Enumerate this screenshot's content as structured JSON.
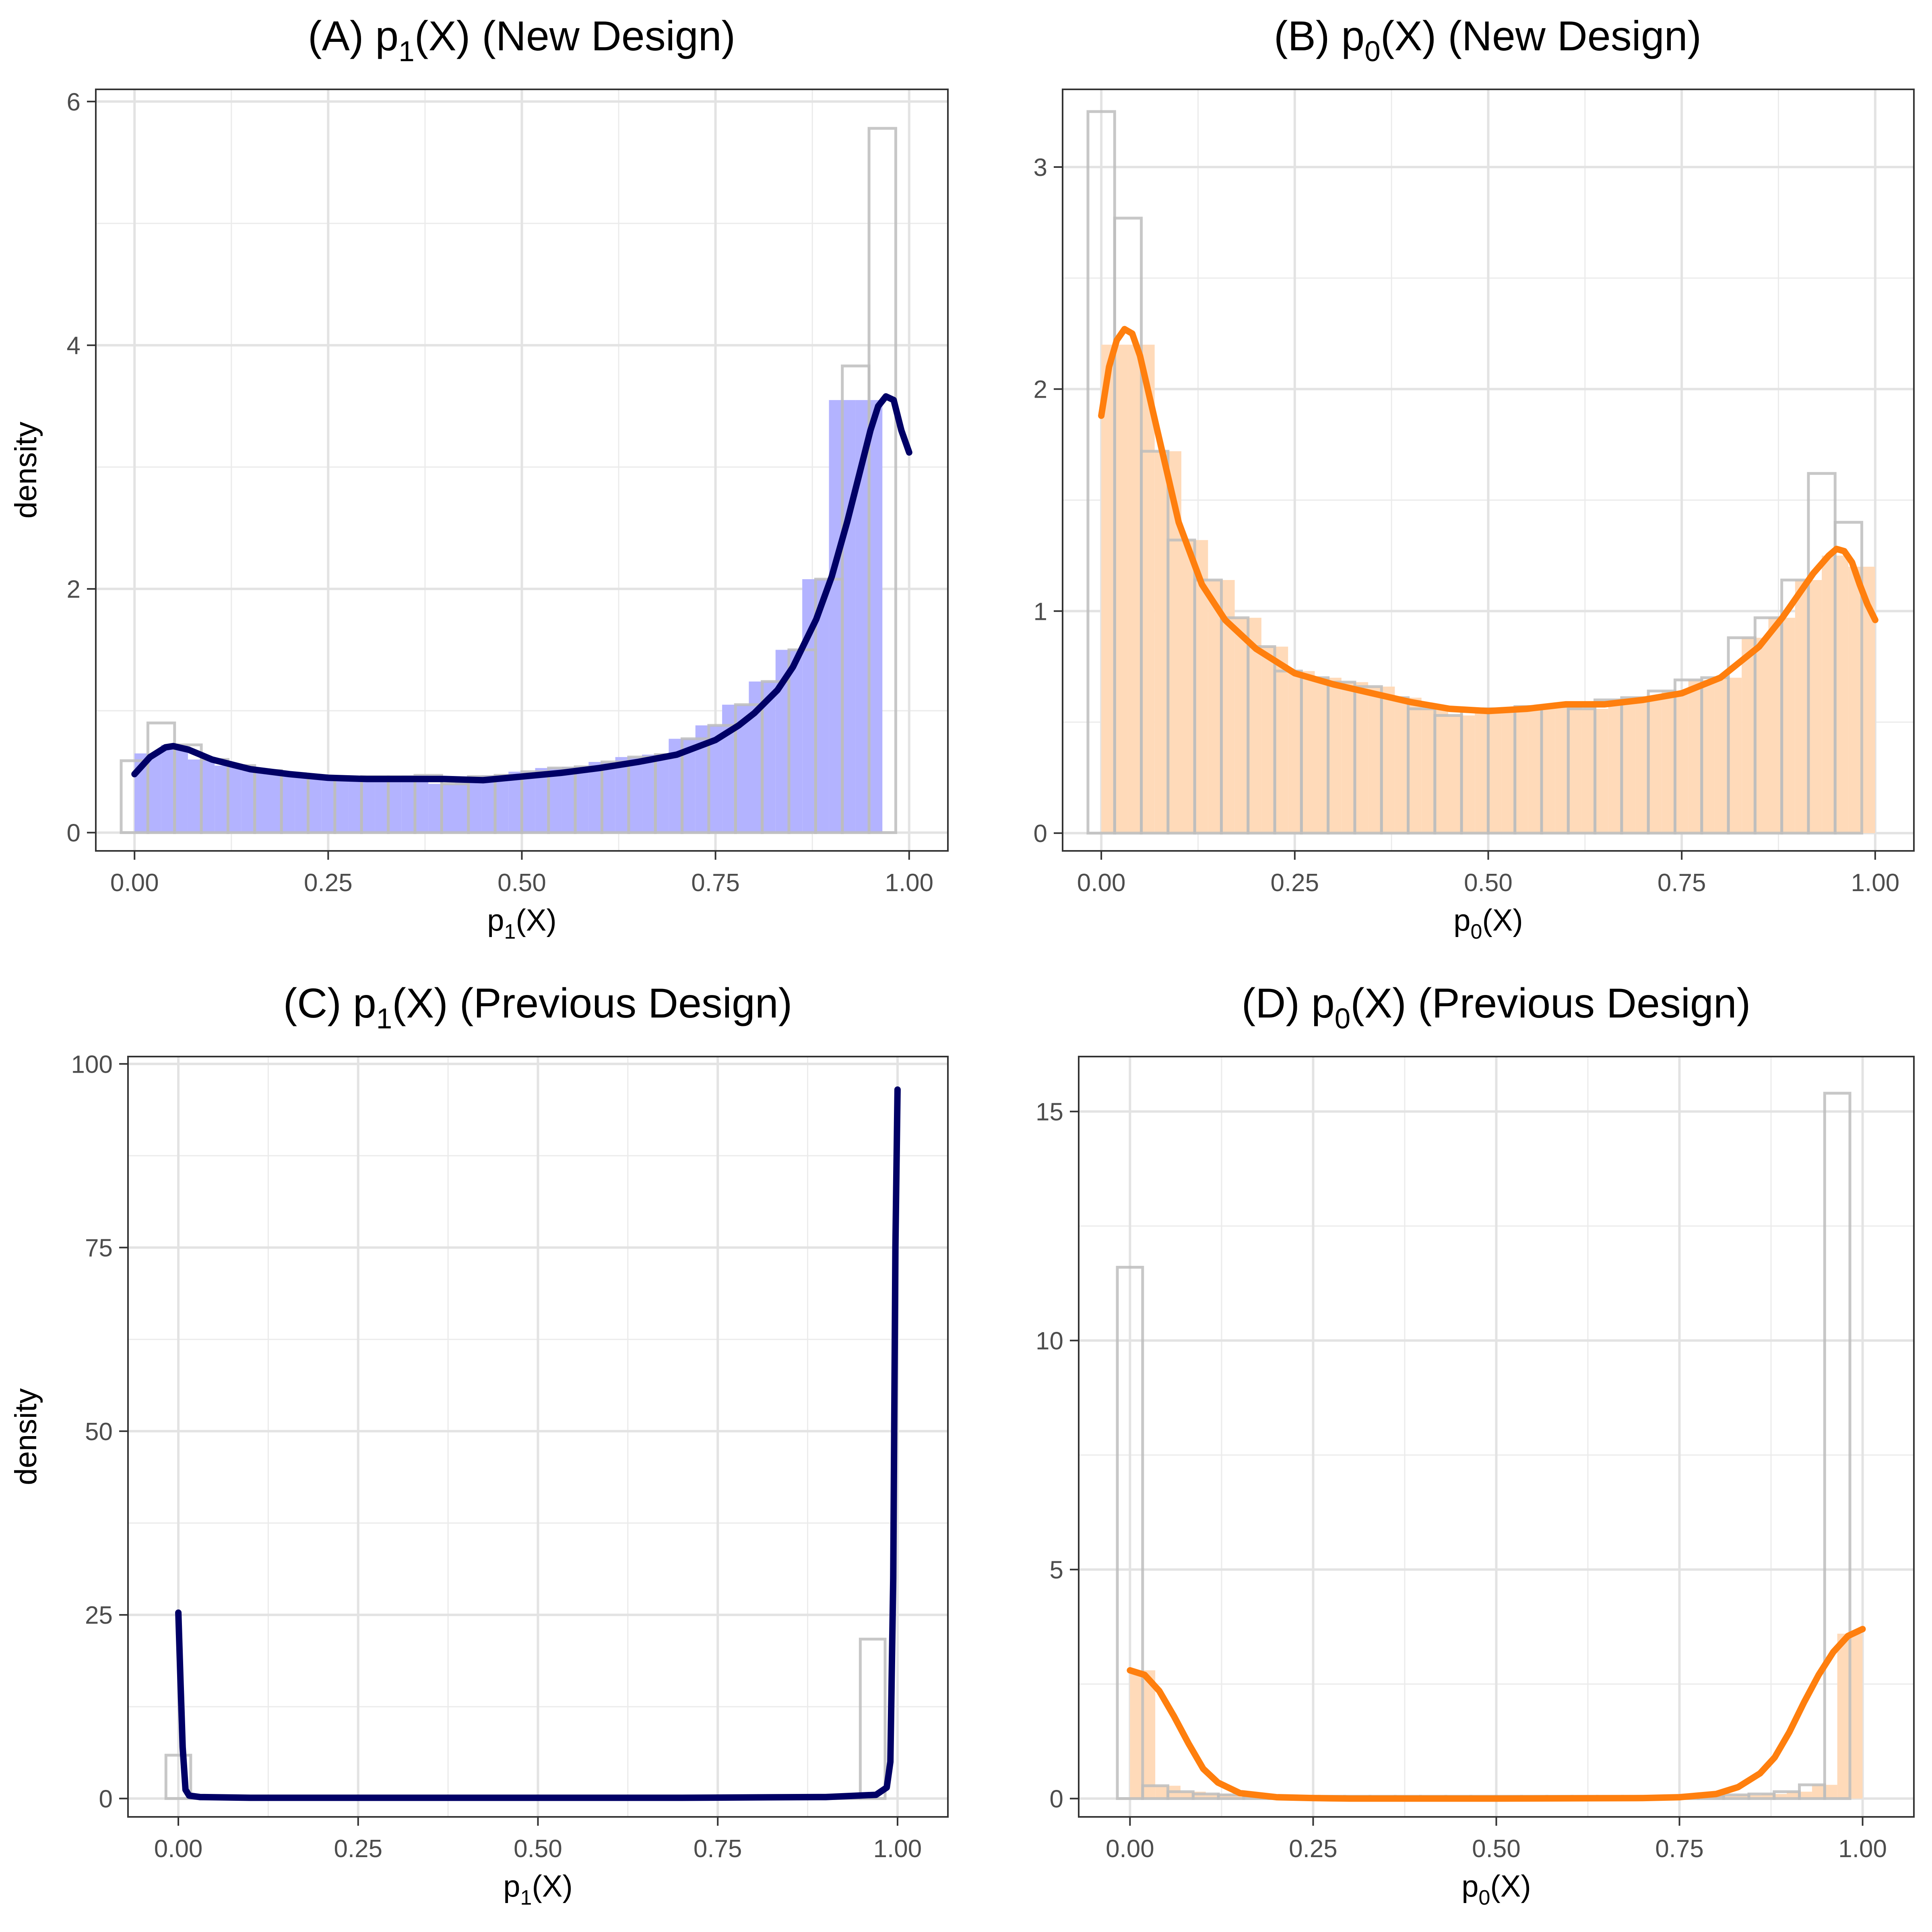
{
  "chart_data": [
    {
      "type": "histogram_density",
      "title": {
        "prefix": "(A) p",
        "sub": "1",
        "suffix": "(X) (New Design)"
      },
      "xlabel": {
        "prefix": "p",
        "sub": "1",
        "suffix": "(X)"
      },
      "ylabel": "density",
      "xlim": [
        -0.05,
        1.05
      ],
      "ylim": [
        -0.15,
        6.1
      ],
      "xticks": [
        0,
        0.25,
        0.5,
        0.75,
        1
      ],
      "xtick_labels": [
        "0.00",
        "0.25",
        "0.50",
        "0.75",
        "1.00"
      ],
      "yticks": [
        0,
        2,
        4,
        6
      ],
      "ytick_labels": [
        "0",
        "2",
        "4",
        "6"
      ],
      "fill_color": "#B3B3FF",
      "line_color": "#000066",
      "outline_color": "#BDBDBD",
      "hist_bins": {
        "start": -0.01724,
        "width": 0.03448,
        "heights": [
          0.59,
          0.9,
          0.72,
          0.6,
          0.55,
          0.51,
          0.48,
          0.46,
          0.45,
          0.46,
          0.46,
          0.47,
          0.4,
          0.46,
          0.47,
          0.5,
          0.53,
          0.54,
          0.58,
          0.62,
          0.64,
          0.77,
          0.88,
          1.05,
          1.24,
          1.5,
          2.08,
          3.83,
          5.78
        ]
      },
      "fill_bins": {
        "start": 0.0,
        "width": 0.03448,
        "heights": [
          0.65,
          0.72,
          0.6,
          0.55,
          0.51,
          0.48,
          0.46,
          0.45,
          0.46,
          0.46,
          0.47,
          0.4,
          0.46,
          0.47,
          0.5,
          0.53,
          0.54,
          0.58,
          0.62,
          0.64,
          0.77,
          0.88,
          1.05,
          1.24,
          1.5,
          2.08,
          3.55,
          3.55
        ]
      },
      "density_curve": {
        "x": [
          0,
          0.02,
          0.04,
          0.05,
          0.07,
          0.1,
          0.15,
          0.2,
          0.25,
          0.3,
          0.35,
          0.4,
          0.45,
          0.5,
          0.55,
          0.6,
          0.65,
          0.7,
          0.75,
          0.78,
          0.8,
          0.83,
          0.85,
          0.88,
          0.9,
          0.92,
          0.94,
          0.95,
          0.96,
          0.97,
          0.98,
          0.99,
          1.0
        ],
        "y": [
          0.48,
          0.62,
          0.7,
          0.71,
          0.68,
          0.6,
          0.52,
          0.48,
          0.45,
          0.44,
          0.44,
          0.44,
          0.43,
          0.46,
          0.49,
          0.53,
          0.58,
          0.64,
          0.76,
          0.88,
          0.98,
          1.17,
          1.36,
          1.75,
          2.1,
          2.55,
          3.05,
          3.3,
          3.5,
          3.58,
          3.55,
          3.3,
          3.12
        ]
      }
    },
    {
      "type": "histogram_density",
      "title": {
        "prefix": "(B) p",
        "sub": "0",
        "suffix": "(X) (New Design)"
      },
      "xlabel": {
        "prefix": "p",
        "sub": "0",
        "suffix": "(X)"
      },
      "ylabel": "density",
      "xlim": [
        -0.05,
        1.05
      ],
      "ylim": [
        -0.08,
        3.35
      ],
      "xticks": [
        0,
        0.25,
        0.5,
        0.75,
        1
      ],
      "xtick_labels": [
        "0.00",
        "0.25",
        "0.50",
        "0.75",
        "1.00"
      ],
      "yticks": [
        0,
        1,
        2,
        3
      ],
      "ytick_labels": [
        "0",
        "1",
        "2",
        "3"
      ],
      "fill_color": "#FFDAB9",
      "line_color": "#FF7F0E",
      "outline_color": "#BDBDBD",
      "hist_bins": {
        "start": -0.01724,
        "width": 0.03448,
        "heights": [
          3.25,
          2.77,
          1.72,
          1.32,
          1.14,
          0.97,
          0.84,
          0.73,
          0.7,
          0.68,
          0.66,
          0.61,
          0.56,
          0.53,
          0.56,
          0.56,
          0.57,
          0.57,
          0.56,
          0.6,
          0.61,
          0.64,
          0.69,
          0.7,
          0.88,
          0.97,
          1.14,
          1.62,
          1.4
        ]
      },
      "fill_bins": {
        "start": 0.0,
        "width": 0.03448,
        "heights": [
          2.2,
          2.2,
          1.72,
          1.32,
          1.14,
          0.97,
          0.84,
          0.73,
          0.7,
          0.68,
          0.66,
          0.61,
          0.56,
          0.53,
          0.56,
          0.56,
          0.57,
          0.57,
          0.56,
          0.6,
          0.61,
          0.64,
          0.69,
          0.7,
          0.88,
          0.97,
          1.14,
          1.25,
          1.2
        ]
      },
      "density_curve": {
        "x": [
          0,
          0.01,
          0.02,
          0.03,
          0.04,
          0.05,
          0.07,
          0.1,
          0.13,
          0.16,
          0.2,
          0.25,
          0.3,
          0.35,
          0.4,
          0.45,
          0.5,
          0.55,
          0.6,
          0.65,
          0.7,
          0.75,
          0.8,
          0.85,
          0.88,
          0.9,
          0.92,
          0.94,
          0.95,
          0.96,
          0.97,
          0.98,
          0.99,
          1.0
        ],
        "y": [
          1.88,
          2.1,
          2.22,
          2.27,
          2.25,
          2.15,
          1.85,
          1.4,
          1.12,
          0.96,
          0.83,
          0.72,
          0.67,
          0.63,
          0.59,
          0.56,
          0.55,
          0.56,
          0.58,
          0.58,
          0.6,
          0.63,
          0.7,
          0.84,
          0.97,
          1.07,
          1.17,
          1.25,
          1.28,
          1.27,
          1.22,
          1.12,
          1.03,
          0.96
        ]
      }
    },
    {
      "type": "histogram_density",
      "title": {
        "prefix": "(C) p",
        "sub": "1",
        "suffix": "(X) (Previous Design)"
      },
      "xlabel": {
        "prefix": "p",
        "sub": "1",
        "suffix": "(X)"
      },
      "ylabel": "density",
      "xlim": [
        -0.07,
        1.07
      ],
      "ylim": [
        -2.5,
        101
      ],
      "xticks": [
        0,
        0.25,
        0.5,
        0.75,
        1
      ],
      "xtick_labels": [
        "0.00",
        "0.25",
        "0.50",
        "0.75",
        "1.00"
      ],
      "yticks": [
        0,
        25,
        50,
        75,
        100
      ],
      "ytick_labels": [
        "0",
        "25",
        "50",
        "75",
        "100"
      ],
      "fill_color": "#B3B3FF",
      "line_color": "#000066",
      "outline_color": "#BDBDBD",
      "hist_bins": {
        "start": -0.01724,
        "width": 0.03448,
        "heights": [
          5.9,
          0.1,
          0.05,
          0.05,
          0.05,
          0.05,
          0.05,
          0.05,
          0.05,
          0.05,
          0.05,
          0.05,
          0.05,
          0.05,
          0.05,
          0.05,
          0.05,
          0.05,
          0.05,
          0.05,
          0.05,
          0.05,
          0.05,
          0.05,
          0.05,
          0.05,
          0.05,
          0.1,
          21.7
        ]
      },
      "fill_bins": {
        "start": 0.0,
        "width": 0.03448,
        "heights": []
      },
      "density_curve": {
        "x": [
          0,
          0.003,
          0.006,
          0.01,
          0.015,
          0.03,
          0.1,
          0.3,
          0.5,
          0.7,
          0.9,
          0.97,
          0.985,
          0.99,
          0.994,
          0.997,
          1.0
        ],
        "y": [
          25.3,
          16.0,
          7.0,
          1.2,
          0.4,
          0.2,
          0.1,
          0.1,
          0.1,
          0.1,
          0.2,
          0.5,
          1.5,
          5.0,
          30.0,
          75.0,
          96.5
        ]
      }
    },
    {
      "type": "histogram_density",
      "title": {
        "prefix": "(D) p",
        "sub": "0",
        "suffix": "(X) (Previous Design)"
      },
      "xlabel": {
        "prefix": "p",
        "sub": "0",
        "suffix": "(X)"
      },
      "ylabel": "density",
      "xlim": [
        -0.07,
        1.07
      ],
      "ylim": [
        -0.4,
        16.2
      ],
      "xticks": [
        0,
        0.25,
        0.5,
        0.75,
        1
      ],
      "xtick_labels": [
        "0.00",
        "0.25",
        "0.50",
        "0.75",
        "1.00"
      ],
      "yticks": [
        0,
        5,
        10,
        15
      ],
      "ytick_labels": [
        "0",
        "5",
        "10",
        "15"
      ],
      "fill_color": "#FFDAB9",
      "line_color": "#FF7F0E",
      "outline_color": "#BDBDBD",
      "hist_bins": {
        "start": -0.01724,
        "width": 0.03448,
        "heights": [
          11.6,
          0.28,
          0.15,
          0.1,
          0.08,
          0.06,
          0.05,
          0.05,
          0.05,
          0.05,
          0.05,
          0.05,
          0.05,
          0.05,
          0.05,
          0.05,
          0.05,
          0.05,
          0.05,
          0.05,
          0.05,
          0.05,
          0.05,
          0.06,
          0.08,
          0.1,
          0.15,
          0.3,
          15.4
        ]
      },
      "fill_bins": {
        "start": 0.0,
        "width": 0.03448,
        "heights": [
          2.8,
          0.28,
          0.15,
          0.1,
          0.08,
          0.06,
          0.05,
          0.05,
          0.05,
          0.05,
          0.05,
          0.05,
          0.05,
          0.05,
          0.05,
          0.05,
          0.05,
          0.05,
          0.05,
          0.05,
          0.05,
          0.05,
          0.05,
          0.06,
          0.08,
          0.1,
          0.15,
          0.3,
          3.6
        ]
      },
      "density_curve": {
        "x": [
          0,
          0.02,
          0.04,
          0.06,
          0.08,
          0.1,
          0.12,
          0.15,
          0.2,
          0.25,
          0.3,
          0.5,
          0.7,
          0.75,
          0.8,
          0.83,
          0.86,
          0.88,
          0.9,
          0.92,
          0.94,
          0.96,
          0.98,
          1.0
        ],
        "y": [
          2.8,
          2.7,
          2.35,
          1.8,
          1.2,
          0.65,
          0.35,
          0.12,
          0.03,
          0.01,
          0.0,
          0.0,
          0.01,
          0.03,
          0.1,
          0.25,
          0.55,
          0.9,
          1.45,
          2.1,
          2.7,
          3.2,
          3.55,
          3.7
        ]
      }
    }
  ]
}
